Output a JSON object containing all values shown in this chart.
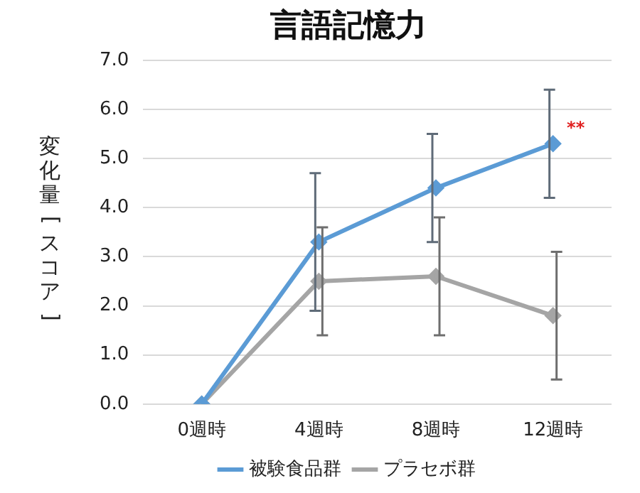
{
  "chart_data": {
    "type": "line",
    "title": "言語記憶力",
    "ylabel": "変化量[スコア]",
    "categories": [
      "0週時",
      "4週時",
      "8週時",
      "12週時"
    ],
    "series": [
      {
        "name": "被験食品群",
        "color": "#5b9bd5",
        "values": [
          0,
          3.3,
          4.4,
          5.3
        ],
        "errors": [
          null,
          1.4,
          1.1,
          1.1
        ]
      },
      {
        "name": "プラセボ群",
        "color": "#a5a5a5",
        "values": [
          0,
          2.5,
          2.6,
          1.8
        ],
        "errors": [
          null,
          1.1,
          1.2,
          1.3
        ]
      }
    ],
    "ylim": [
      0,
      7
    ],
    "yticks": [
      {
        "value": 0,
        "label": "0.0"
      },
      {
        "value": 1,
        "label": "1.0"
      },
      {
        "value": 2,
        "label": "2.0"
      },
      {
        "value": 3,
        "label": "3.0"
      },
      {
        "value": 4,
        "label": "4.0"
      },
      {
        "value": 5,
        "label": "5.0"
      },
      {
        "value": 6,
        "label": "6.0"
      },
      {
        "value": 7,
        "label": "7.0"
      }
    ],
    "grid": "y",
    "legend": "bottom",
    "marker": "diamond",
    "line_style": "solid",
    "annotations": [
      {
        "text": "**",
        "x": "12週時",
        "y": 5.6
      }
    ]
  }
}
